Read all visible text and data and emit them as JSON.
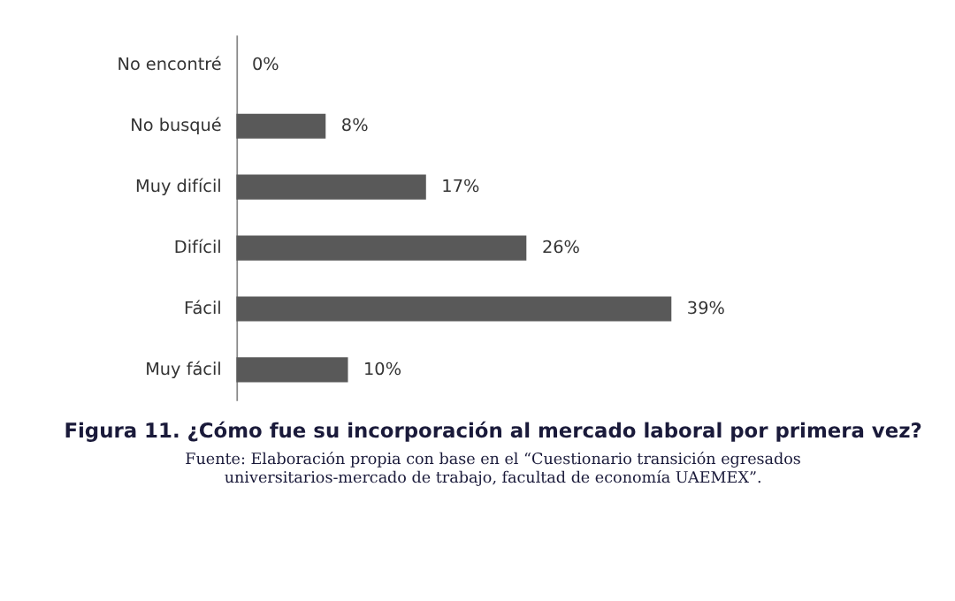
{
  "chart_data": {
    "type": "bar",
    "orientation": "horizontal",
    "title": "Figura 11. ¿Cómo fue su incorporación al mercado laboral por primera vez?",
    "annotations": [
      "Fuente: Elaboración propia con base en el “Cuestionario transición egresados universitarios-mercado de trabajo, facultad de economía UAEMEX”."
    ],
    "categories": [
      "No encontré",
      "No busqué",
      "Muy difícil",
      "Difícil",
      "Fácil",
      "Muy fácil"
    ],
    "values": [
      0,
      8,
      17,
      26,
      39,
      10
    ],
    "color": "#595959",
    "value_labels": [
      "0%",
      "8%",
      "17%",
      "26%",
      "39%",
      "10%"
    ],
    "grid": false
  }
}
